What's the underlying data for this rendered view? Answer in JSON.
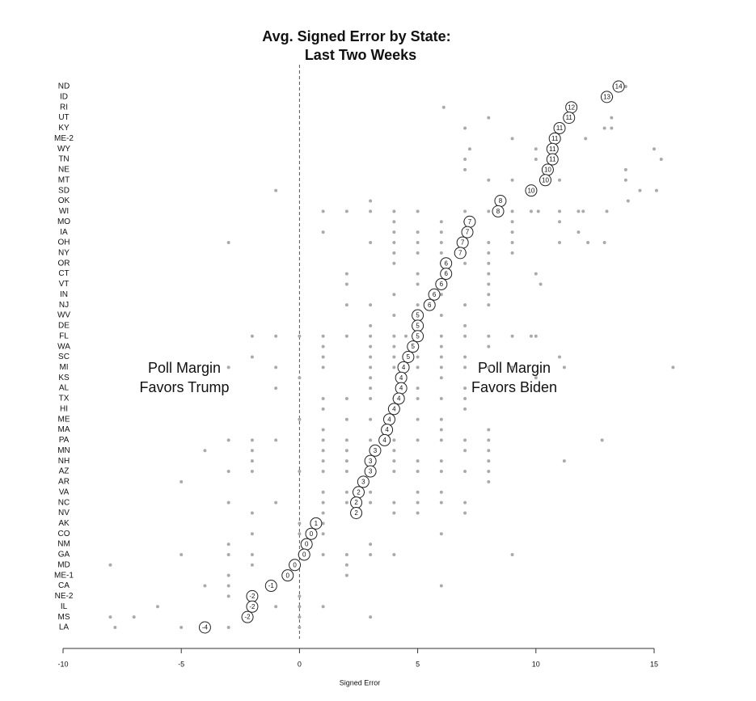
{
  "chart_data": {
    "type": "dot",
    "title": "Avg. Signed Error by State:",
    "subtitle": "Last Two Weeks",
    "x_label": "Signed Error",
    "annotations": [
      [
        "Poll Margin",
        "Favors Trump"
      ],
      [
        "Poll Margin",
        "Favors Biden"
      ]
    ],
    "categories": [
      "ND",
      "ID",
      "RI",
      "UT",
      "KY",
      "ME-2",
      "WY",
      "TN",
      "NE",
      "MT",
      "SD",
      "OK",
      "WI",
      "MO",
      "IA",
      "OH",
      "NY",
      "OR",
      "CT",
      "VT",
      "IN",
      "NJ",
      "WV",
      "DE",
      "FL",
      "WA",
      "SC",
      "MI",
      "KS",
      "AL",
      "TX",
      "HI",
      "ME",
      "MA",
      "PA",
      "MN",
      "NH",
      "AZ",
      "AR",
      "VA",
      "NC",
      "NV",
      "AK",
      "CO",
      "NM",
      "GA",
      "MD",
      "ME-1",
      "CA",
      "NE-2",
      "IL",
      "MS",
      "LA"
    ],
    "values": [
      13.5,
      13.0,
      11.5,
      11.4,
      11.0,
      10.8,
      10.7,
      10.7,
      10.5,
      10.4,
      9.8,
      8.5,
      8.4,
      7.2,
      7.1,
      6.9,
      6.8,
      6.2,
      6.2,
      6.0,
      5.7,
      5.5,
      5.0,
      5.0,
      5.0,
      4.8,
      4.6,
      4.4,
      4.3,
      4.3,
      4.2,
      4.0,
      3.8,
      3.7,
      3.6,
      3.2,
      3.0,
      3.0,
      2.7,
      2.5,
      2.4,
      2.4,
      0.7,
      0.5,
      0.3,
      0.2,
      -0.2,
      -0.5,
      -1.2,
      -2.0,
      -2.0,
      -2.2,
      -4.0
    ],
    "value_labels": [
      "14",
      "13",
      "12",
      "11",
      "11",
      "11",
      "11",
      "11",
      "10",
      "10",
      "10",
      "8",
      "8",
      "7",
      "7",
      "7",
      "7",
      "6",
      "6",
      "6",
      "6",
      "6",
      "5",
      "5",
      "5",
      "5",
      "5",
      "4",
      "4",
      "4",
      "4",
      "4",
      "4",
      "4",
      "4",
      "3",
      "3",
      "3",
      "3",
      "2",
      "2",
      "2",
      "1",
      "0",
      "0",
      "0",
      "0",
      "0",
      "-1",
      "-2",
      "-2",
      "-2",
      "-4"
    ],
    "polls": [
      [
        13.3,
        13.6,
        13.8
      ],
      [
        13.0,
        13.2
      ],
      [
        6.1,
        11.5
      ],
      [
        8.0,
        11.4,
        13.2
      ],
      [
        7.0,
        11.0,
        12.9,
        13.2
      ],
      [
        9.0,
        10.8,
        12.1
      ],
      [
        7.2,
        10.0,
        10.7,
        15.0
      ],
      [
        7.0,
        10.0,
        10.7,
        15.3
      ],
      [
        7.0,
        10.5,
        13.8
      ],
      [
        8.0,
        9.0,
        10.4,
        11.0,
        13.8
      ],
      [
        -1.0,
        9.8,
        14.4,
        15.1
      ],
      [
        3.0,
        8.5,
        13.9
      ],
      [
        1.0,
        2.0,
        3.0,
        4.0,
        5.0,
        7.0,
        8.0,
        8.4,
        9.0,
        9.8,
        10.1,
        11.0,
        11.8,
        12.0,
        13.0
      ],
      [
        4.0,
        6.0,
        7.0,
        7.2,
        9.0,
        11.0
      ],
      [
        1.0,
        4.0,
        5.0,
        6.0,
        7.0,
        7.1,
        9.0,
        11.8
      ],
      [
        -3.0,
        3.0,
        4.0,
        5.0,
        6.0,
        6.9,
        8.0,
        9.0,
        11.0,
        12.2,
        12.9
      ],
      [
        4.0,
        5.0,
        6.0,
        6.8,
        7.0,
        8.0,
        9.0
      ],
      [
        4.0,
        6.0,
        6.2,
        7.0,
        8.0
      ],
      [
        2.0,
        5.0,
        6.2,
        8.0,
        10.0
      ],
      [
        2.0,
        5.0,
        6.0,
        8.0,
        10.2
      ],
      [
        4.0,
        5.7,
        6.0,
        8.0
      ],
      [
        2.0,
        3.0,
        5.0,
        5.5,
        7.0,
        8.0
      ],
      [
        4.0,
        5.0,
        6.0
      ],
      [
        3.0,
        5.0,
        7.0
      ],
      [
        -2.0,
        -1.0,
        0.0,
        1.0,
        2.0,
        3.0,
        4.0,
        4.5,
        5.0,
        6.0,
        7.0,
        8.0,
        9.0,
        9.8,
        10.0
      ],
      [
        1.0,
        3.0,
        4.0,
        4.8,
        6.0,
        8.0
      ],
      [
        -2.0,
        1.0,
        3.0,
        4.0,
        4.6,
        5.0,
        6.0,
        7.0,
        11.0
      ],
      [
        -3.0,
        -1.0,
        1.0,
        3.0,
        4.0,
        4.4,
        5.0,
        6.0,
        7.0,
        8.0,
        9.0,
        11.2,
        15.8
      ],
      [
        0.0,
        3.0,
        4.3,
        6.0,
        10.0
      ],
      [
        -1.0,
        3.0,
        4.3,
        5.0,
        7.0
      ],
      [
        1.0,
        2.0,
        3.0,
        4.0,
        4.2,
        5.0,
        6.0,
        7.0
      ],
      [
        1.0,
        4.0,
        7.0
      ],
      [
        0.0,
        2.0,
        3.0,
        3.8,
        5.0,
        6.0
      ],
      [
        1.0,
        3.7,
        6.0,
        8.0
      ],
      [
        -3.0,
        -2.0,
        -1.0,
        1.0,
        2.0,
        3.0,
        3.6,
        4.0,
        5.0,
        6.0,
        7.0,
        8.0,
        12.8
      ],
      [
        -4.0,
        -2.0,
        1.0,
        2.0,
        3.2,
        4.0,
        7.0,
        8.0
      ],
      [
        -2.0,
        1.0,
        2.0,
        3.0,
        4.0,
        5.0,
        6.0,
        8.0,
        11.2
      ],
      [
        -3.0,
        -2.0,
        0.0,
        1.0,
        2.0,
        3.0,
        4.0,
        5.0,
        6.0,
        7.0,
        8.0
      ],
      [
        -5.0,
        2.7,
        8.0
      ],
      [
        1.0,
        2.0,
        2.5,
        3.0,
        5.0,
        6.0
      ],
      [
        -3.0,
        -1.0,
        1.0,
        2.0,
        2.4,
        3.0,
        4.0,
        5.0,
        6.0,
        7.0
      ],
      [
        -2.0,
        1.0,
        2.4,
        4.0,
        5.0,
        7.0
      ],
      [
        0.0,
        0.7,
        1.0
      ],
      [
        -2.0,
        0.0,
        0.5,
        1.0,
        6.0
      ],
      [
        -3.0,
        0.3,
        3.0
      ],
      [
        -5.0,
        -3.0,
        -2.0,
        0.0,
        0.2,
        1.0,
        2.0,
        3.0,
        4.0,
        9.0
      ],
      [
        -8.0,
        -2.0,
        -0.2,
        2.0
      ],
      [
        -3.0,
        -0.5,
        2.0
      ],
      [
        -4.0,
        -3.0,
        -1.2,
        6.0
      ],
      [
        -3.0,
        -2.0,
        0.0
      ],
      [
        -6.0,
        -2.0,
        -1.0,
        0.0,
        1.0
      ],
      [
        -8.0,
        -7.0,
        -2.2,
        0.0,
        3.0
      ],
      [
        -7.8,
        -5.0,
        -4.0,
        -3.0,
        0.0
      ]
    ],
    "poll_color": "#aaaaaa",
    "xlim": [
      -10,
      15
    ],
    "xticks": [
      -10,
      -5,
      0,
      5,
      10,
      15
    ],
    "reference_x": 0
  }
}
